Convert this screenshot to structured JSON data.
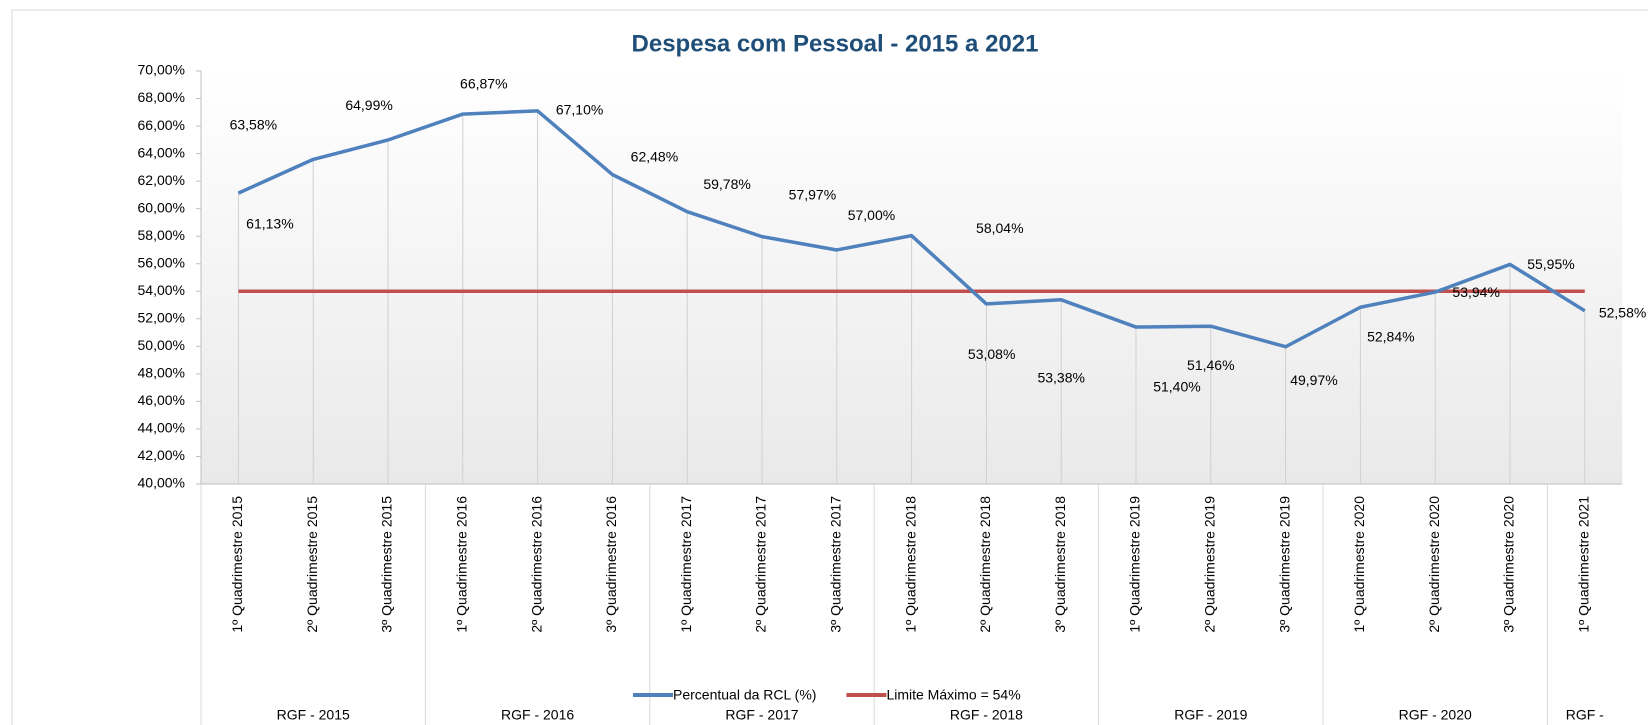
{
  "chart_data": {
    "type": "line",
    "title": "Despesa com Pessoal - 2015 a 2021",
    "categories": [
      "1º Quadrimestre 2015",
      "2º Quadrimestre 2015",
      "3º Quadrimestre 2015",
      "1º Quadrimestre 2016",
      "2º Quadrimestre 2016",
      "3º Quadrimestre 2016",
      "1º Quadrimestre 2017",
      "2º Quadrimestre 2017",
      "3º Quadrimestre 2017",
      "1º Quadrimestre 2018",
      "2º Quadrimestre 2018",
      "3º Quadrimestre 2018",
      "1º Quadrimestre 2019",
      "2º Quadrimestre 2019",
      "3º Quadrimestre 2019",
      "1º Quadrimestre 2020",
      "2º Quadrimestre 2020",
      "3º Quadrimestre 2020",
      "1º Quadrimestre 2021"
    ],
    "groups": [
      "RGF - 2015",
      "RGF - 2015",
      "RGF - 2015",
      "RGF - 2016",
      "RGF - 2016",
      "RGF - 2016",
      "RGF - 2017",
      "RGF - 2017",
      "RGF - 2017",
      "RGF - 2018",
      "RGF - 2018",
      "RGF - 2018",
      "RGF - 2019",
      "RGF - 2019",
      "RGF - 2019",
      "RGF - 2020",
      "RGF - 2020",
      "RGF - 2020",
      "RGF -"
    ],
    "series": [
      {
        "name": "Percentual da RCL (%)",
        "color": "#4f81bd",
        "values": [
          61.13,
          63.58,
          64.99,
          66.87,
          67.1,
          62.48,
          59.78,
          57.97,
          57.0,
          58.04,
          53.08,
          53.38,
          51.4,
          51.46,
          49.97,
          52.84,
          53.94,
          55.95,
          52.58
        ],
        "value_labels": [
          "61,13%",
          "63,58%",
          "64,99%",
          "66,87%",
          "67,10%",
          "62,48%",
          "59,78%",
          "57,97%",
          "57,00%",
          "58,04%",
          "53,08%",
          "53,38%",
          "51,40%",
          "51,46%",
          "49,97%",
          "52,84%",
          "53,94%",
          "55,95%",
          "52,58%"
        ]
      },
      {
        "name": "Limite Máximo = 54%",
        "color": "#c0504d",
        "values": [
          54,
          54,
          54,
          54,
          54,
          54,
          54,
          54,
          54,
          54,
          54,
          54,
          54,
          54,
          54,
          54,
          54,
          54,
          54
        ]
      }
    ],
    "ylim": [
      40,
      70
    ],
    "yticks": [
      {
        "value": 40,
        "label": "40,00%"
      },
      {
        "value": 42,
        "label": "42,00%"
      },
      {
        "value": 44,
        "label": "44,00%"
      },
      {
        "value": 46,
        "label": "46,00%"
      },
      {
        "value": 48,
        "label": "48,00%"
      },
      {
        "value": 50,
        "label": "50,00%"
      },
      {
        "value": 52,
        "label": "52,00%"
      },
      {
        "value": 54,
        "label": "54,00%"
      },
      {
        "value": 56,
        "label": "56,00%"
      },
      {
        "value": 58,
        "label": "58,00%"
      },
      {
        "value": 60,
        "label": "60,00%"
      },
      {
        "value": 62,
        "label": "62,00%"
      },
      {
        "value": 64,
        "label": "64,00%"
      },
      {
        "value": 66,
        "label": "66,00%"
      },
      {
        "value": 68,
        "label": "68,00%"
      },
      {
        "value": 70,
        "label": "70,00%"
      }
    ]
  }
}
